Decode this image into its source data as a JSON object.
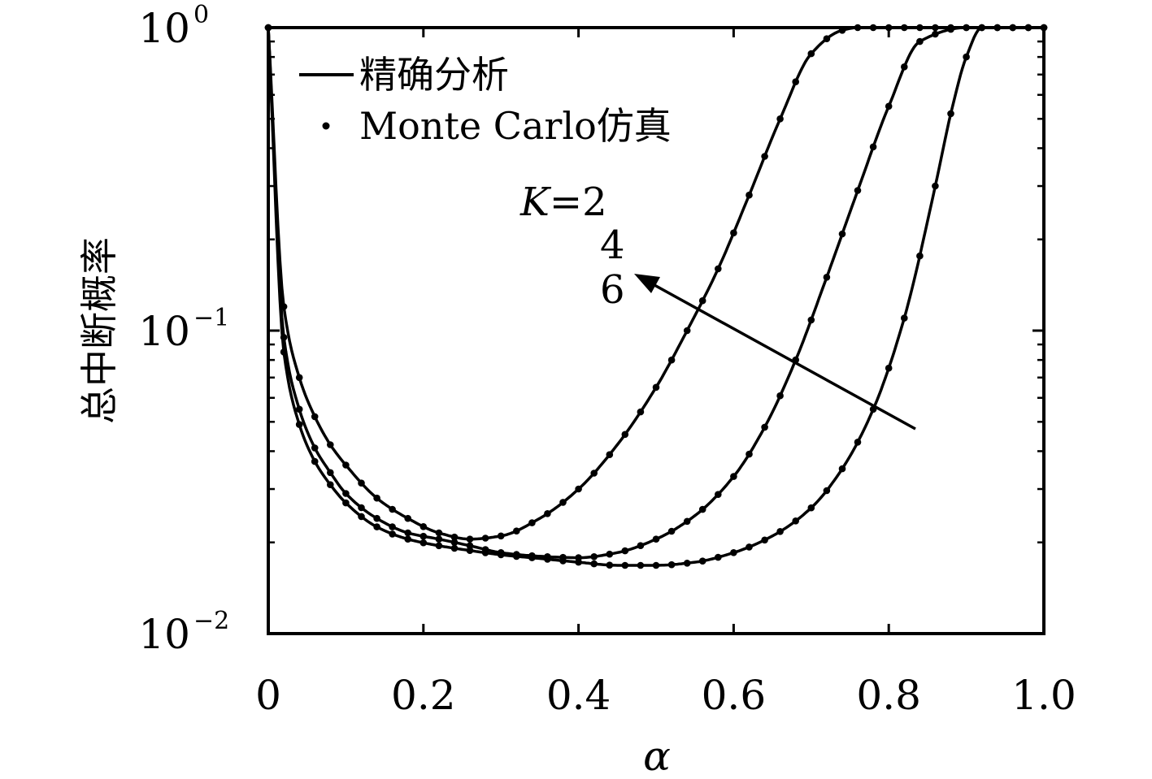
{
  "chart_data": {
    "type": "line",
    "xlabel": "α",
    "ylabel": "总中断概率",
    "xlim": [
      0,
      1
    ],
    "ylim": [
      0.01,
      1
    ],
    "yscale": "log",
    "xticks": [
      0,
      0.2,
      0.4,
      0.6,
      0.8,
      1.0
    ],
    "xtick_labels": [
      "0",
      "0.2",
      "0.4",
      "0.6",
      "0.8",
      "1.0"
    ],
    "yticks": [
      {
        "base": "10",
        "exp": "0",
        "value": 1
      },
      {
        "base": "10",
        "exp": "−1",
        "value": 0.1
      },
      {
        "base": "10",
        "exp": "−2",
        "value": 0.01
      }
    ],
    "grid": false,
    "legend": {
      "position": "top-left",
      "entries": [
        {
          "label": "精确分析",
          "style": "line"
        },
        {
          "label": "Monte Carlo仿真",
          "style": "dot"
        }
      ]
    },
    "annotations": {
      "k_prefix": "K",
      "k_values": [
        "=2",
        "4",
        "6"
      ]
    },
    "series": [
      {
        "x": [
          0.0,
          0.02,
          0.04,
          0.06,
          0.08,
          0.1,
          0.14,
          0.18,
          0.22,
          0.26,
          0.3,
          0.35,
          0.4,
          0.45,
          0.5,
          0.54,
          0.58,
          0.62,
          0.66,
          0.7,
          0.74,
          0.76,
          0.8,
          0.9,
          1.0
        ],
        "y": [
          1.0,
          0.12,
          0.07,
          0.052,
          0.042,
          0.036,
          0.028,
          0.024,
          0.0215,
          0.0205,
          0.021,
          0.024,
          0.03,
          0.042,
          0.065,
          0.1,
          0.16,
          0.28,
          0.5,
          0.82,
          0.98,
          1.0,
          1.0,
          1.0,
          1.0
        ]
      },
      {
        "x": [
          0.0,
          0.02,
          0.04,
          0.06,
          0.08,
          0.1,
          0.14,
          0.18,
          0.22,
          0.26,
          0.3,
          0.35,
          0.4,
          0.45,
          0.5,
          0.55,
          0.6,
          0.64,
          0.68,
          0.72,
          0.76,
          0.8,
          0.84,
          0.9,
          1.0
        ],
        "y": [
          1.0,
          0.095,
          0.055,
          0.041,
          0.034,
          0.029,
          0.024,
          0.0215,
          0.0205,
          0.0195,
          0.0185,
          0.018,
          0.0178,
          0.0185,
          0.0205,
          0.0245,
          0.033,
          0.048,
          0.08,
          0.15,
          0.29,
          0.55,
          0.9,
          1.0,
          1.0
        ]
      },
      {
        "x": [
          0.0,
          0.02,
          0.04,
          0.06,
          0.08,
          0.1,
          0.14,
          0.18,
          0.22,
          0.26,
          0.3,
          0.35,
          0.4,
          0.45,
          0.5,
          0.55,
          0.6,
          0.65,
          0.7,
          0.74,
          0.78,
          0.82,
          0.86,
          0.88,
          0.9,
          0.92,
          1.0
        ],
        "y": [
          1.0,
          0.085,
          0.049,
          0.037,
          0.031,
          0.027,
          0.0225,
          0.0205,
          0.0195,
          0.0188,
          0.0182,
          0.0177,
          0.0172,
          0.0168,
          0.0168,
          0.0172,
          0.0185,
          0.021,
          0.026,
          0.035,
          0.055,
          0.11,
          0.3,
          0.52,
          0.8,
          1.0,
          1.0
        ]
      }
    ]
  }
}
